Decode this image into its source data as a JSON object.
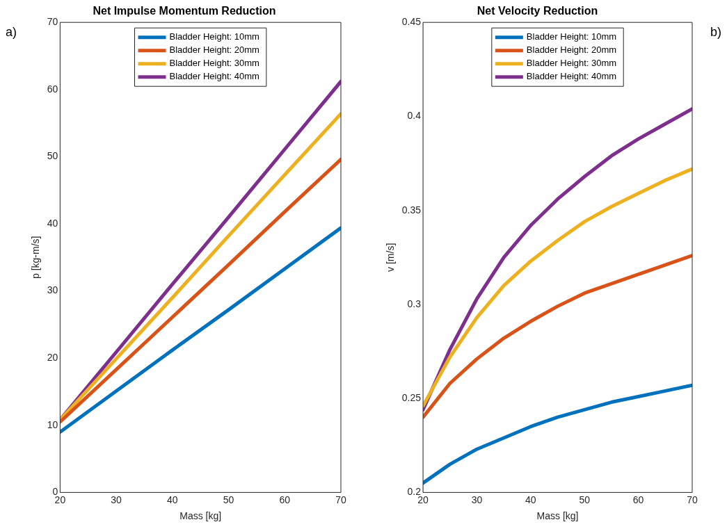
{
  "chart_data": [
    {
      "type": "line",
      "title": "Net Impulse Momentum Reduction",
      "xlabel": "Mass [kg]",
      "ylabel": "p [kg-m/s]",
      "annotations": [
        "a)"
      ],
      "x": [
        20,
        30,
        40,
        50,
        60,
        70
      ],
      "xlim": [
        20,
        70
      ],
      "xticks": [
        20,
        30,
        40,
        50,
        60,
        70
      ],
      "ylim": [
        0,
        70
      ],
      "yticks": [
        0,
        10,
        20,
        30,
        40,
        50,
        60,
        70
      ],
      "grid": false,
      "legend": "top",
      "line_style": "solid",
      "series": [
        {
          "name": "Bladder Height: 10mm",
          "color": "#0072bd",
          "values": [
            9,
            15.1,
            21.2,
            27.2,
            33.3,
            39.4
          ]
        },
        {
          "name": "Bladder Height: 20mm",
          "color": "#d95319",
          "values": [
            10.5,
            18.3,
            26.1,
            33.9,
            41.8,
            49.6
          ]
        },
        {
          "name": "Bladder Height: 30mm",
          "color": "#edb120",
          "values": [
            10.8,
            19.9,
            29.0,
            38.2,
            47.3,
            56.4
          ]
        },
        {
          "name": "Bladder Height: 40mm",
          "color": "#7e2f8e",
          "values": [
            10.8,
            20.9,
            31.0,
            41.0,
            51.1,
            61.2
          ]
        }
      ]
    },
    {
      "type": "line",
      "title": "Net Velocity Reduction",
      "xlabel": "Mass [kg]",
      "ylabel": "v [m/s]",
      "annotations": [
        "b)"
      ],
      "x": [
        20,
        25,
        30,
        35,
        40,
        45,
        50,
        55,
        60,
        65,
        70
      ],
      "xlim": [
        20,
        70
      ],
      "xticks": [
        20,
        30,
        40,
        50,
        60,
        70
      ],
      "ylim": [
        0.2,
        0.45
      ],
      "yticks": [
        0.2,
        0.25,
        0.3,
        0.35,
        0.4,
        0.45
      ],
      "grid": false,
      "legend": "top",
      "line_style": "solid",
      "series": [
        {
          "name": "Bladder Height: 10mm",
          "color": "#0072bd",
          "values": [
            0.205,
            0.215,
            0.223,
            0.229,
            0.235,
            0.24,
            0.244,
            0.248,
            0.251,
            0.254,
            0.257
          ]
        },
        {
          "name": "Bladder Height: 20mm",
          "color": "#d95319",
          "values": [
            0.24,
            0.258,
            0.271,
            0.282,
            0.291,
            0.299,
            0.306,
            0.311,
            0.316,
            0.321,
            0.326
          ]
        },
        {
          "name": "Bladder Height: 30mm",
          "color": "#edb120",
          "values": [
            0.246,
            0.272,
            0.293,
            0.31,
            0.323,
            0.334,
            0.344,
            0.352,
            0.359,
            0.366,
            0.372
          ]
        },
        {
          "name": "Bladder Height: 40mm",
          "color": "#7e2f8e",
          "values": [
            0.244,
            0.276,
            0.303,
            0.325,
            0.342,
            0.356,
            0.368,
            0.379,
            0.388,
            0.396,
            0.404
          ]
        }
      ]
    }
  ]
}
